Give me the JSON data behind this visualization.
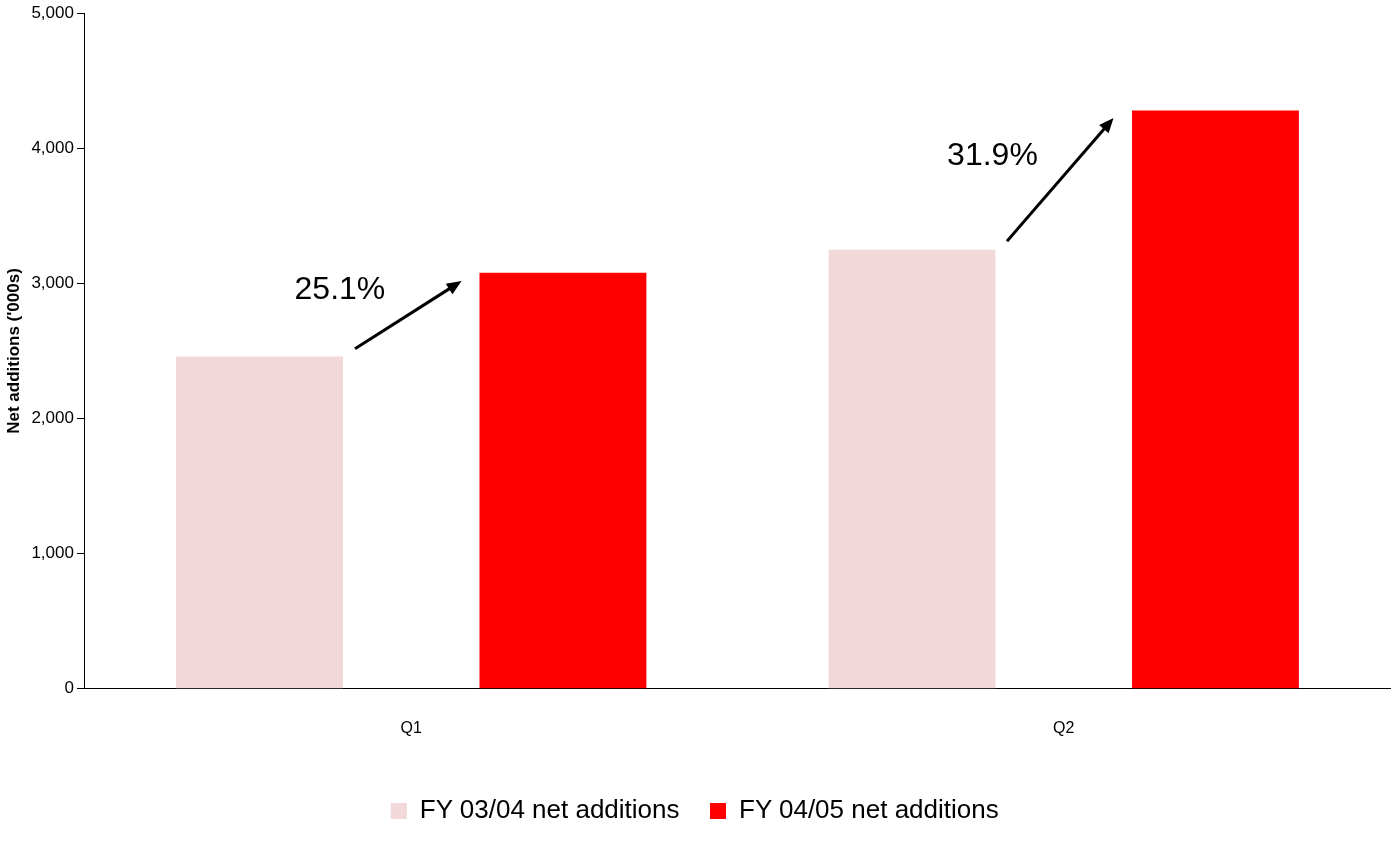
{
  "chart_data": {
    "type": "bar",
    "ylabel": "Net additions ('000s)",
    "categories": [
      "Q1",
      "Q2"
    ],
    "series": [
      {
        "name": "FY 03/04 net additions",
        "color": "#f2d8d8",
        "values": [
          2460,
          3250
        ]
      },
      {
        "name": "FY 04/05 net additions",
        "color": "#ff0000",
        "values": [
          3080,
          4280
        ]
      }
    ],
    "ylim": [
      0,
      5000
    ],
    "yticks": [
      0,
      {
        "value": 1000,
        "label": "1,000"
      },
      {
        "value": 2000,
        "label": "2,000"
      },
      {
        "value": 3000,
        "label": "3,000"
      },
      {
        "value": 4000,
        "label": "4,000"
      },
      {
        "value": 5000,
        "label": "5,000"
      }
    ],
    "grid": false,
    "legend": "bottom",
    "annotations": [
      "25.1%",
      "31.9%"
    ]
  }
}
